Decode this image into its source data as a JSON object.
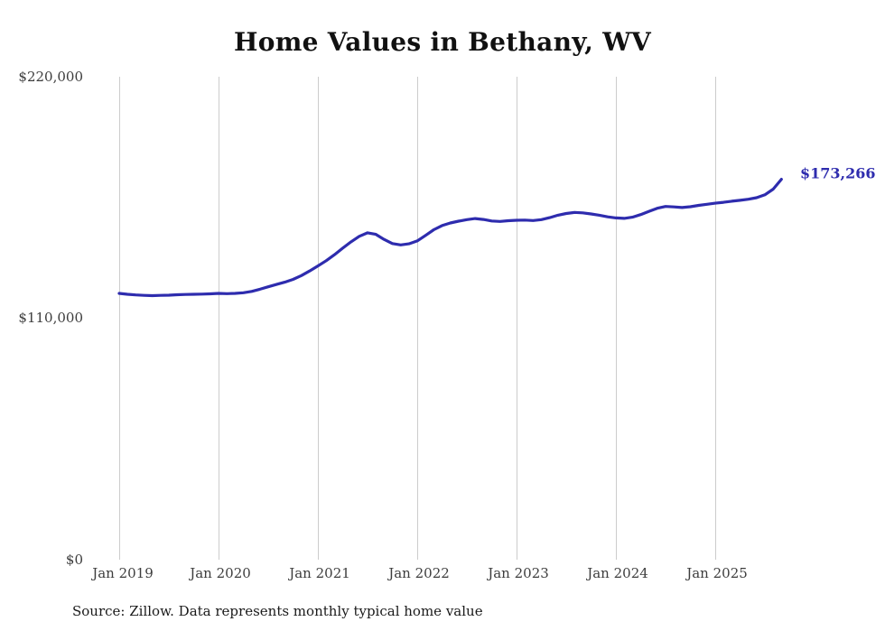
{
  "title": "Home Values in Bethany, WV",
  "source_note": "Source: Zillow. Data represents monthly typical home value",
  "end_label": "$173,266",
  "colors": {
    "line": "#2e2cae",
    "grid": "#cccccc",
    "text": "#3d3d3d",
    "title": "#111111"
  },
  "chart_data": {
    "type": "line",
    "title": "Home Values in Bethany, WV",
    "ylabel": "",
    "xlabel": "",
    "ylim": [
      0,
      220000
    ],
    "ytick_labels": [
      "$220,000",
      "$110,000",
      "$0"
    ],
    "ytick_values": [
      220000,
      110000,
      0
    ],
    "xtick_labels": [
      "Jan 2019",
      "Jan 2020",
      "Jan 2021",
      "Jan 2022",
      "Jan 2023",
      "Jan 2024",
      "Jan 2025"
    ],
    "grid": "vertical-only",
    "legend": "none",
    "annotation": "$173,266",
    "x": [
      "2019-01",
      "2019-02",
      "2019-03",
      "2019-04",
      "2019-05",
      "2019-06",
      "2019-07",
      "2019-08",
      "2019-09",
      "2019-10",
      "2019-11",
      "2019-12",
      "2020-01",
      "2020-02",
      "2020-03",
      "2020-04",
      "2020-05",
      "2020-06",
      "2020-07",
      "2020-08",
      "2020-09",
      "2020-10",
      "2020-11",
      "2020-12",
      "2021-01",
      "2021-02",
      "2021-03",
      "2021-04",
      "2021-05",
      "2021-06",
      "2021-07",
      "2021-08",
      "2021-09",
      "2021-10",
      "2021-11",
      "2021-12",
      "2022-01",
      "2022-02",
      "2022-03",
      "2022-04",
      "2022-05",
      "2022-06",
      "2022-07",
      "2022-08",
      "2022-09",
      "2022-10",
      "2022-11",
      "2022-12",
      "2023-01",
      "2023-02",
      "2023-03",
      "2023-04",
      "2023-05",
      "2023-06",
      "2023-07",
      "2023-08",
      "2023-09",
      "2023-10",
      "2023-11",
      "2023-12",
      "2024-01",
      "2024-02",
      "2024-03",
      "2024-04",
      "2024-05",
      "2024-06",
      "2024-07",
      "2024-08",
      "2024-09",
      "2024-10",
      "2024-11",
      "2024-12",
      "2025-01",
      "2025-02",
      "2025-03",
      "2025-04",
      "2025-05",
      "2025-06",
      "2025-07",
      "2025-08",
      "2025-09"
    ],
    "values": [
      121300,
      120900,
      120600,
      120400,
      120300,
      120400,
      120500,
      120700,
      120800,
      120900,
      121000,
      121100,
      121300,
      121200,
      121300,
      121600,
      122200,
      123200,
      124300,
      125400,
      126400,
      127700,
      129400,
      131500,
      133800,
      136200,
      138900,
      141900,
      144800,
      147300,
      148900,
      148200,
      145900,
      144000,
      143400,
      143900,
      145200,
      147700,
      150300,
      152200,
      153400,
      154200,
      154900,
      155400,
      155000,
      154300,
      154100,
      154400,
      154600,
      154700,
      154500,
      154900,
      155800,
      156900,
      157700,
      158200,
      158000,
      157500,
      156900,
      156200,
      155700,
      155500,
      156000,
      157200,
      158700,
      160100,
      160900,
      160700,
      160400,
      160800,
      161400,
      161900,
      162400,
      162800,
      163300,
      163700,
      164200,
      164900,
      166200,
      168800,
      173266
    ]
  },
  "layout_meta": {
    "note": "values read from pixel positions; y gridline span 85-620px, jan gridlines every 110px from x=132"
  }
}
